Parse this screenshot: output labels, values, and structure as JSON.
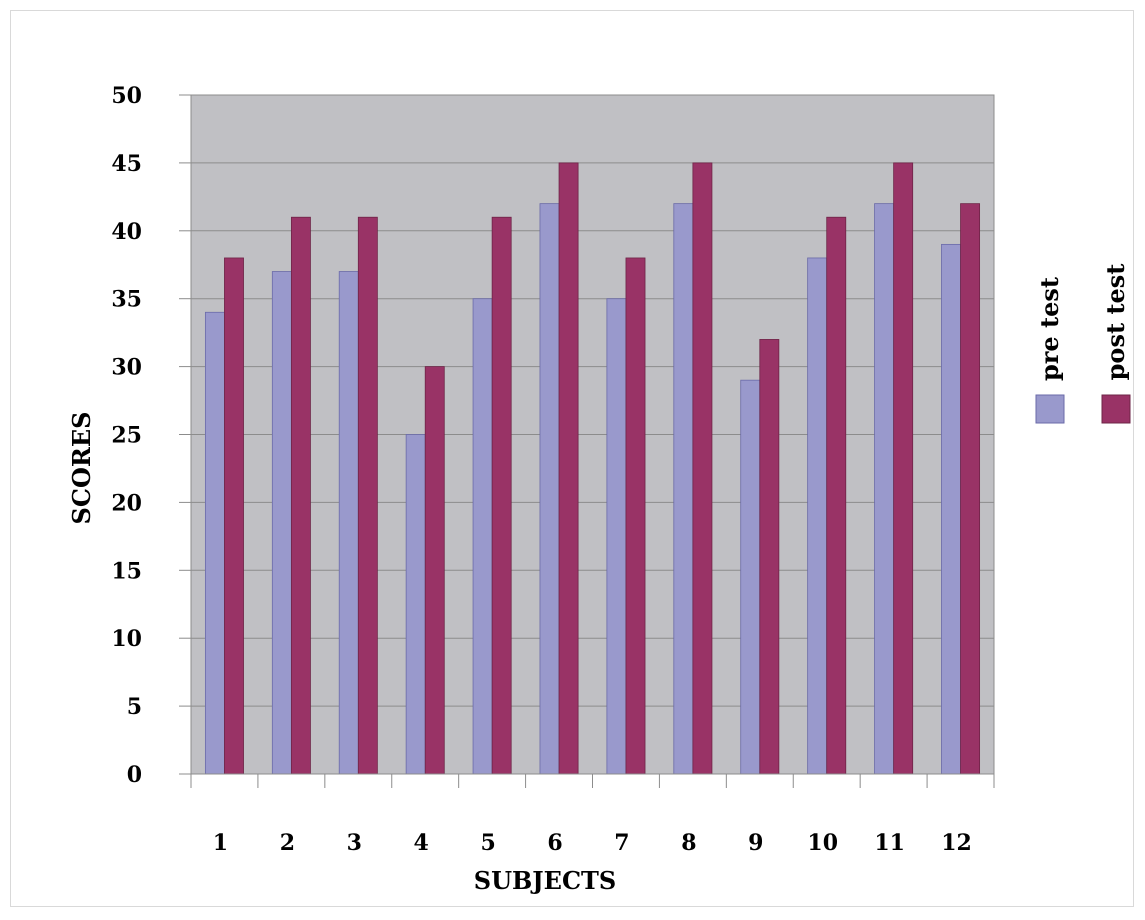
{
  "chart_data": {
    "type": "bar",
    "categories": [
      "1",
      "2",
      "3",
      "4",
      "5",
      "6",
      "7",
      "8",
      "9",
      "10",
      "11",
      "12"
    ],
    "series": [
      {
        "name": "pre test",
        "values": [
          34,
          37,
          37,
          25,
          35,
          42,
          35,
          42,
          29,
          38,
          42,
          39
        ]
      },
      {
        "name": "post test",
        "values": [
          38,
          41,
          41,
          30,
          41,
          45,
          38,
          45,
          32,
          41,
          45,
          42
        ]
      }
    ],
    "xlabel": "SUBJECTS",
    "ylabel": "SCORES",
    "ylim": [
      0,
      50
    ],
    "yticks": [
      "0",
      "5",
      "10",
      "15",
      "20",
      "25",
      "30",
      "35",
      "40",
      "45",
      "50"
    ],
    "grid": true,
    "legend_position": "right",
    "colors": {
      "plot_background": "#c0c0c4",
      "gridline": "#8c8c8c",
      "pre_test": "#9999cc",
      "post_test": "#993366"
    }
  }
}
